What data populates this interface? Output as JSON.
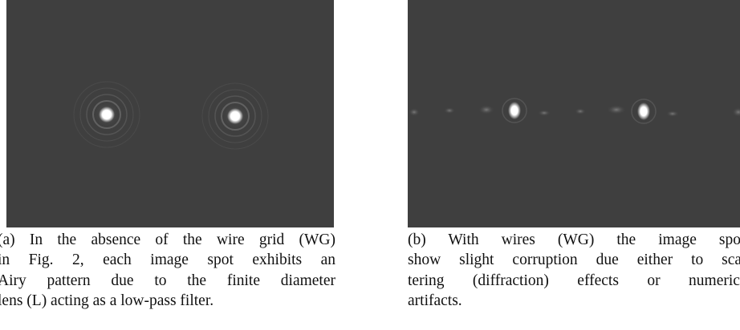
{
  "panels": [
    {
      "caption": [
        "(a) In the absence of the wire grid (WG)",
        "in Fig. 2, each image spot exhibits an",
        "Airy pattern due to the finite diameter",
        "lens (L) acting as a low-pass filter."
      ]
    },
    {
      "caption": [
        "(b) With wires (WG) the image spots",
        "show slight corruption due either to scat-",
        "tering (diffraction) effects or numerical",
        "artifacts."
      ]
    }
  ]
}
